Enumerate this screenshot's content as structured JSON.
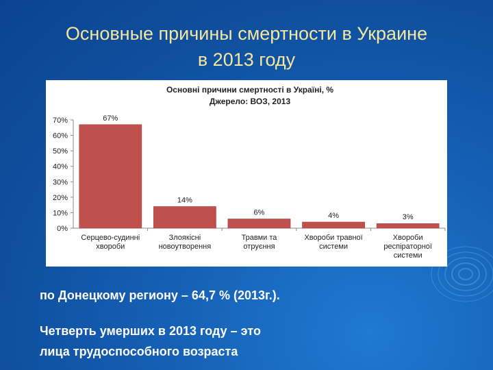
{
  "slide": {
    "title_line1": "Основные причины смертности в Украине",
    "title_line2": "в 2013 году",
    "note_region": "по Донецкому региону – 64,7 % (2013г.).",
    "note_quarter_line1": "Четверть умерших в 2013 году – это",
    "note_quarter_line2": "лица трудоспособного возраста"
  },
  "colors": {
    "title": "#f5e6a0",
    "bar": "#c0504d",
    "background": "#1662b8"
  },
  "chart_data": {
    "type": "bar",
    "title": "Основні причини смертності в Україні, %",
    "subtitle": "Джерело: ВОЗ, 2013",
    "categories": [
      [
        "Серцево-судинні",
        "хвороби"
      ],
      [
        "Злоякісні",
        "новоутворення"
      ],
      [
        "Травми та",
        "отруєння"
      ],
      [
        "Хвороби травної",
        "системи"
      ],
      [
        "Хвороби",
        "респіраторної",
        "системи"
      ]
    ],
    "values": [
      67,
      14,
      6,
      4,
      3
    ],
    "data_labels": [
      "67%",
      "14%",
      "6%",
      "4%",
      "3%"
    ],
    "yticks": [
      "0%",
      "10%",
      "20%",
      "30%",
      "40%",
      "50%",
      "60%",
      "70%"
    ],
    "ylim": [
      0,
      70
    ],
    "grid": false,
    "legend": "none"
  }
}
